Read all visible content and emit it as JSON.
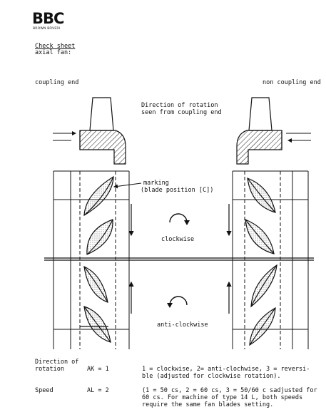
{
  "header": {
    "logo_text": "BBC",
    "logo_subtext": "BROWN BOVERI"
  },
  "title": {
    "check_sheet": "Check sheet",
    "subtitle": "axial fan:"
  },
  "labels": {
    "coupling_end": "coupling end",
    "non_coupling_end": "non coupling end",
    "direction_line1": "Direction of rotation",
    "direction_line2": "seen from coupling end",
    "marking_line1": "marking",
    "marking_line2": "(blade position [C])",
    "clockwise": "clockwise",
    "anti_clockwise": "anti-clockwise"
  },
  "table": {
    "rows": [
      {
        "name_line1": "Direction of",
        "name_line2": "rotation",
        "code": "AK = 1",
        "desc_line1": "1 = clockwise, 2= anti-clochwise, 3 = reversi-",
        "desc_line2": "ble (adjusted for clockwise rotation)."
      },
      {
        "name_line1": "Speed",
        "name_line2": "",
        "code": "AL = 2",
        "desc_line1": "(1 = 50 cs, 2 = 60 cs, 3 = 50/60 c sadjusted for",
        "desc_line2": "60 cs. For machine of type 14 L, both speeds",
        "desc_line3": "require the same fan blades setting."
      }
    ]
  },
  "colors": {
    "ink": "#111111",
    "paper": "#ffffff"
  },
  "icons": [
    "clockwise-arrow-icon",
    "anti-clockwise-arrow-icon",
    "flow-arrow-icon",
    "blade-icon"
  ]
}
